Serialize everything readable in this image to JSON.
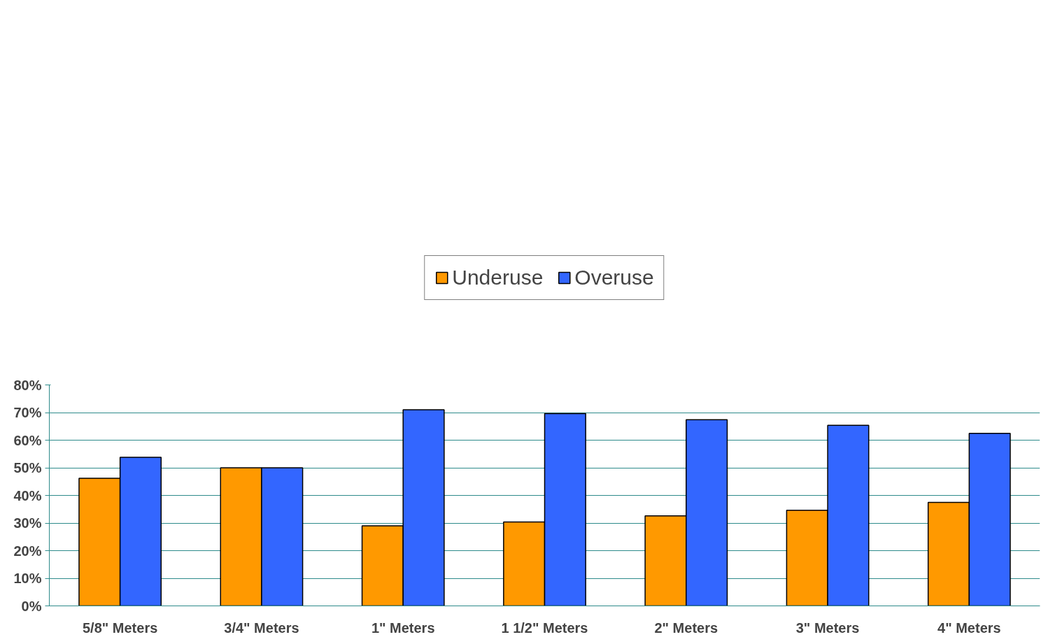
{
  "chart_data": {
    "type": "bar",
    "categories": [
      "5/8\" Meters",
      "3/4\" Meters",
      "1\" Meters",
      "1 1/2\" Meters",
      "2\" Meters",
      "3\" Meters",
      "4\" Meters"
    ],
    "series": [
      {
        "name": "Underuse",
        "color": "#ff9900",
        "values": [
          46.2,
          50,
          29,
          30.4,
          32.6,
          34.6,
          37.5
        ]
      },
      {
        "name": "Overuse",
        "color": "#3366ff",
        "values": [
          53.8,
          50,
          71,
          69.6,
          67.4,
          65.4,
          62.5
        ]
      }
    ],
    "ylim": [
      0,
      80
    ],
    "yticks": [
      {
        "value": 0,
        "label": "0%"
      },
      {
        "value": 10,
        "label": "10%"
      },
      {
        "value": 20,
        "label": "20%"
      },
      {
        "value": 30,
        "label": "30%"
      },
      {
        "value": 40,
        "label": "40%"
      },
      {
        "value": 50,
        "label": "50%"
      },
      {
        "value": 60,
        "label": "60%"
      },
      {
        "value": 70,
        "label": "70%"
      },
      {
        "value": 80,
        "label": "80%"
      }
    ],
    "grid": "y",
    "legend": "top"
  }
}
